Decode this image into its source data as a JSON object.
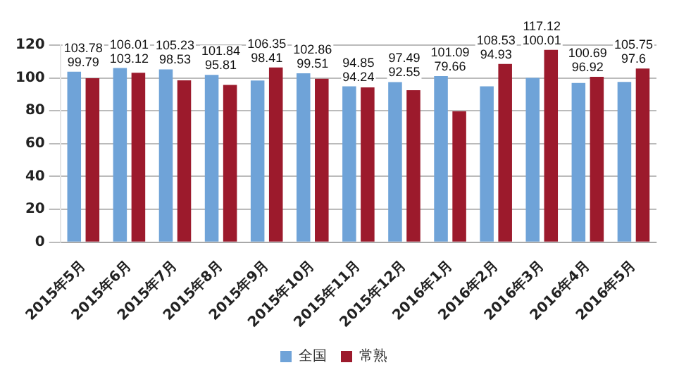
{
  "chart_data": {
    "type": "bar",
    "categories": [
      "2015年5月",
      "2015年6月",
      "2015年7月",
      "2015年8月",
      "2015年9月",
      "2015年10月",
      "2015年11月",
      "2015年12月",
      "2016年1月",
      "2016年2月",
      "2016年3月",
      "2016年4月",
      "2016年5月"
    ],
    "series": [
      {
        "name": "全国",
        "color": "#6fa3d8",
        "values": [
          103.78,
          106.01,
          105.23,
          101.84,
          98.41,
          102.86,
          94.85,
          97.49,
          101.09,
          94.93,
          100.01,
          96.92,
          97.6
        ]
      },
      {
        "name": "常熟",
        "color": "#9c1a2c",
        "values": [
          99.79,
          103.12,
          98.53,
          95.81,
          106.35,
          99.51,
          94.24,
          92.55,
          79.66,
          108.53,
          117.12,
          100.69,
          105.75
        ]
      }
    ],
    "ylim": [
      0,
      120
    ],
    "yticks": [
      0,
      20,
      40,
      60,
      80,
      100,
      120
    ],
    "grid": "y",
    "legend": "bottom",
    "data_labels": true
  }
}
